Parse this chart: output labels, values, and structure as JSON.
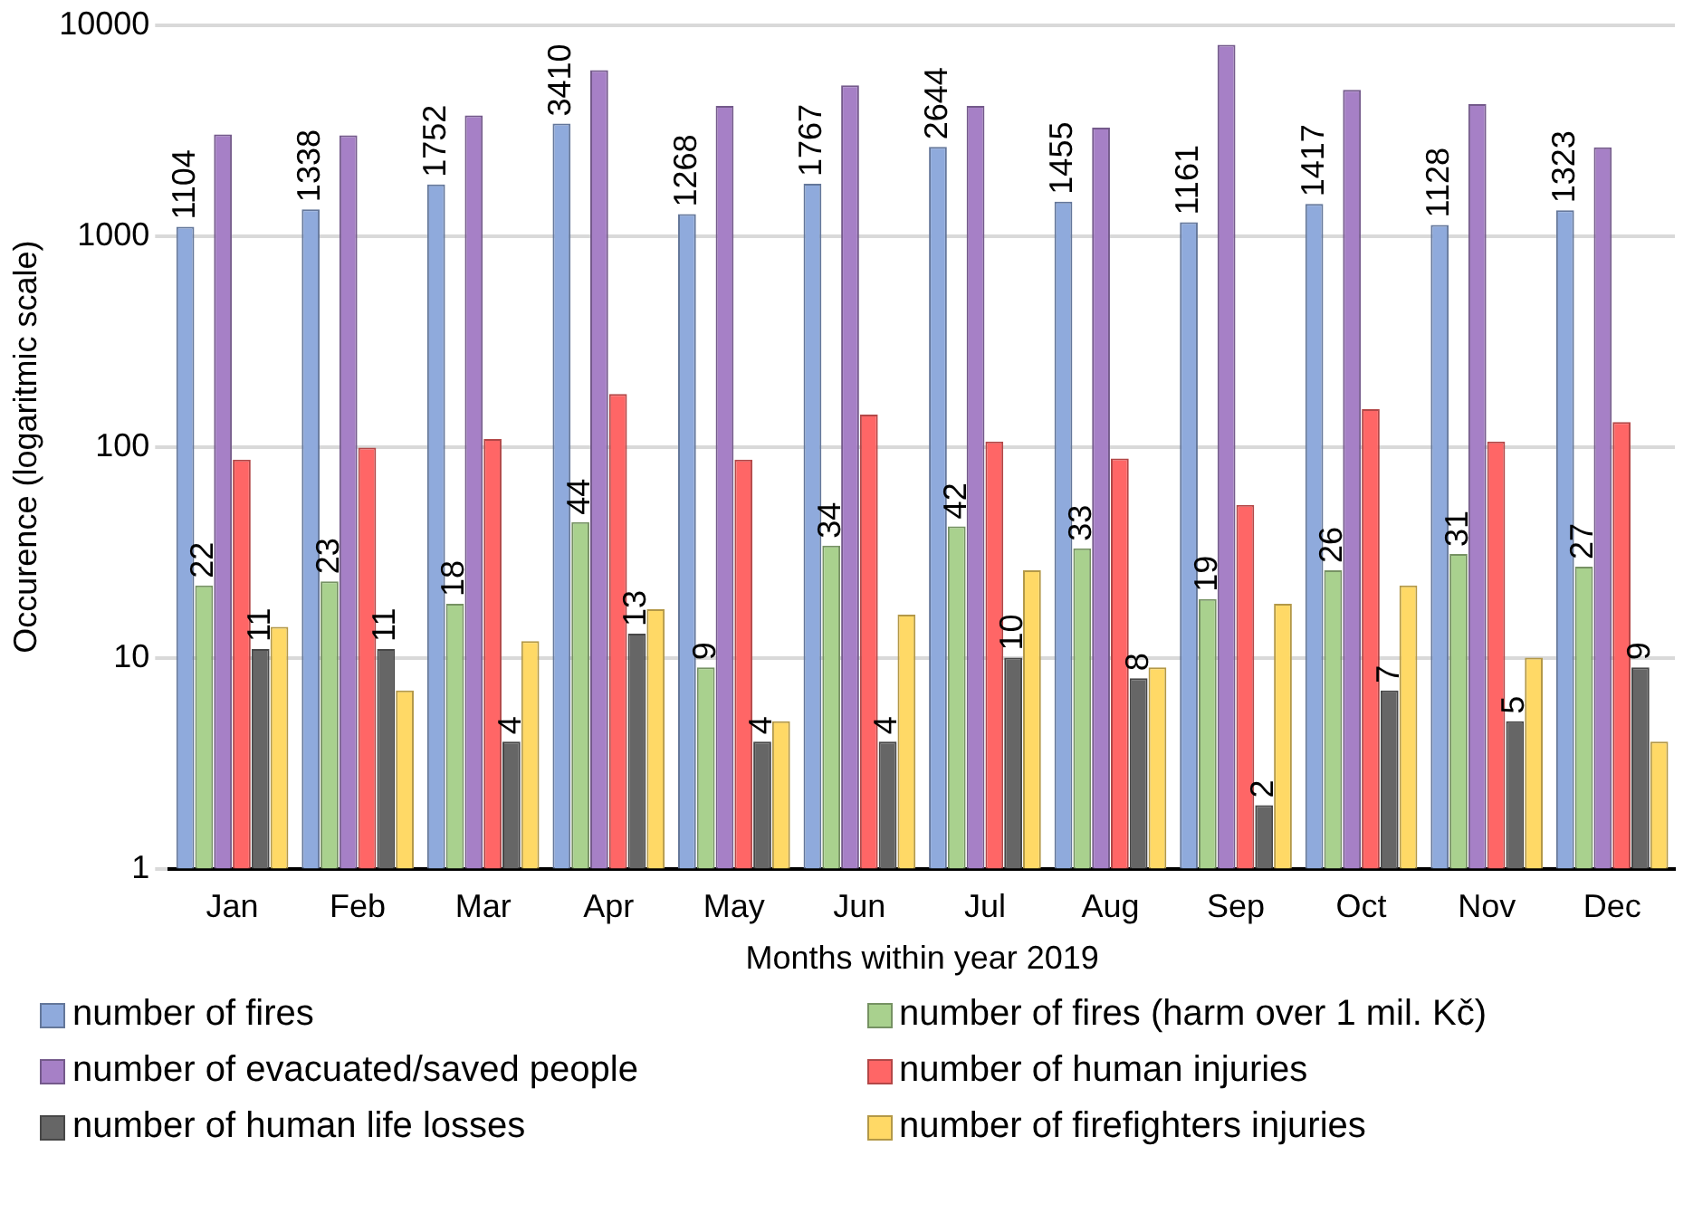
{
  "chart_data": {
    "type": "bar",
    "xlabel": "Months within year 2019",
    "ylabel": "Occurence (logaritmic scale)",
    "categories": [
      "Jan",
      "Feb",
      "Mar",
      "Apr",
      "May",
      "Jun",
      "Jul",
      "Aug",
      "Sep",
      "Oct",
      "Nov",
      "Dec"
    ],
    "log": "y",
    "ylim": [
      1,
      10000
    ],
    "yticks": [
      1,
      10,
      100,
      1000,
      10000
    ],
    "grid": "y",
    "legend": "bottom",
    "series": [
      {
        "name": "number of fires",
        "color": "#8faadc",
        "values": [
          1104,
          1338,
          1752,
          3410,
          1268,
          1767,
          2644,
          1455,
          1161,
          1417,
          1128,
          1323
        ],
        "value_labels": [
          "1104",
          "1338",
          "1752",
          "3410",
          "1268",
          "1767",
          "2644",
          "1455",
          "1161",
          "1417",
          "1128",
          "1323"
        ]
      },
      {
        "name": "number of fires (harm over 1 mil. Kč)",
        "color": "#a9d18e",
        "values": [
          22,
          23,
          18,
          44,
          9,
          34,
          42,
          33,
          19,
          26,
          31,
          27
        ],
        "value_labels": [
          "22",
          "23",
          "18",
          "44",
          "9",
          "34",
          "42",
          "33",
          "19",
          "26",
          "31",
          "27"
        ]
      },
      {
        "name": "number of evacuated/saved people",
        "color": "#a680c6",
        "values": [
          3030,
          3000,
          3730,
          6100,
          4130,
          5180,
          4130,
          3260,
          8060,
          4920,
          4220,
          2630
        ]
      },
      {
        "name": "number of human injuries",
        "color": "#ff6666",
        "values": [
          87,
          99,
          109,
          178,
          87,
          142,
          106,
          88,
          53,
          151,
          106,
          131
        ]
      },
      {
        "name": "number of human life losses",
        "color": "#666666",
        "values": [
          11,
          11,
          4,
          13,
          4,
          4,
          10,
          8,
          2,
          7,
          5,
          9
        ],
        "value_labels": [
          "11",
          "11",
          "4",
          "13",
          "4",
          "4",
          "10",
          "8",
          "2",
          "7",
          "5",
          "9"
        ]
      },
      {
        "name": "number of firefighters injuries",
        "color": "#ffd966",
        "values": [
          14,
          7,
          12,
          17,
          5,
          16,
          26,
          9,
          18,
          22,
          10,
          4
        ]
      }
    ]
  }
}
